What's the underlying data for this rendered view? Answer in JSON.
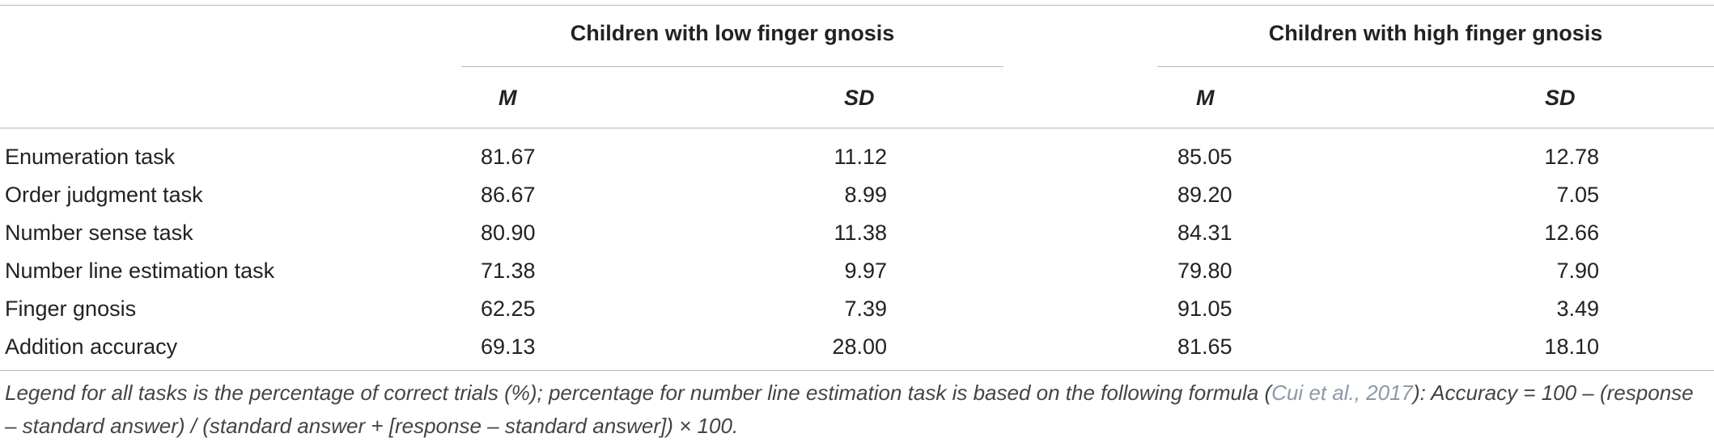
{
  "table": {
    "groups": [
      {
        "label": "Children with low finger gnosis",
        "m_label": "M",
        "sd_label": "SD"
      },
      {
        "label": "Children with high finger gnosis",
        "m_label": "M",
        "sd_label": "SD"
      }
    ],
    "rows": [
      {
        "label": "Enumeration task",
        "low_m": "81.67",
        "low_sd": "11.12",
        "high_m": "85.05",
        "high_sd": "12.78"
      },
      {
        "label": "Order judgment task",
        "low_m": "86.67",
        "low_sd": "8.99",
        "high_m": "89.20",
        "high_sd": "7.05"
      },
      {
        "label": "Number sense task",
        "low_m": "80.90",
        "low_sd": "11.38",
        "high_m": "84.31",
        "high_sd": "12.66"
      },
      {
        "label": "Number line estimation task",
        "low_m": "71.38",
        "low_sd": "9.97",
        "high_m": "79.80",
        "high_sd": "7.90"
      },
      {
        "label": "Finger gnosis",
        "low_m": "62.25",
        "low_sd": "7.39",
        "high_m": "91.05",
        "high_sd": "3.49"
      },
      {
        "label": "Addition accuracy",
        "low_m": "69.13",
        "low_sd": "28.00",
        "high_m": "81.65",
        "high_sd": "18.10"
      }
    ]
  },
  "footnote": {
    "before_citation": "Legend for all tasks is the percentage of correct trials (%); percentage for number line estimation task is based on the following formula (",
    "citation": "Cui et al., 2017",
    "after_citation": "): Accuracy = 100 – (response – standard answer) / (standard answer + [response – standard answer]) × 100."
  }
}
